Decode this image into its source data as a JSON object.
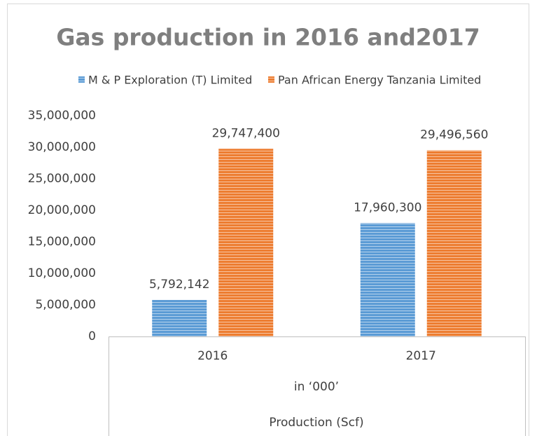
{
  "chart_data": {
    "type": "bar",
    "title": "Gas production in 2016 and2017",
    "categories": [
      "2016",
      "2017"
    ],
    "category_group": "in ‘000’",
    "x_label": "Production (Scf)",
    "series": [
      {
        "name": "M & P Exploration (T) Limited",
        "color": "#5b9bd5",
        "values": [
          5792142,
          17960300
        ],
        "value_labels": [
          "5,792,142",
          "17,960,300"
        ]
      },
      {
        "name": "Pan African Energy Tanzania Limited",
        "color": "#ed7d31",
        "values": [
          29747400,
          29496560
        ],
        "value_labels": [
          "29,747,400",
          "29,496,560"
        ]
      }
    ],
    "ylim": [
      0,
      35000000
    ],
    "yticks": [
      {
        "value": 0,
        "label": "0"
      },
      {
        "value": 5000000,
        "label": "5,000,000"
      },
      {
        "value": 10000000,
        "label": "10,000,000"
      },
      {
        "value": 15000000,
        "label": "15,000,000"
      },
      {
        "value": 20000000,
        "label": "20,000,000"
      },
      {
        "value": 25000000,
        "label": "25,000,000"
      },
      {
        "value": 30000000,
        "label": "30,000,000"
      },
      {
        "value": 35000000,
        "label": "35,000,000"
      }
    ],
    "grid": false,
    "legend": "top"
  }
}
